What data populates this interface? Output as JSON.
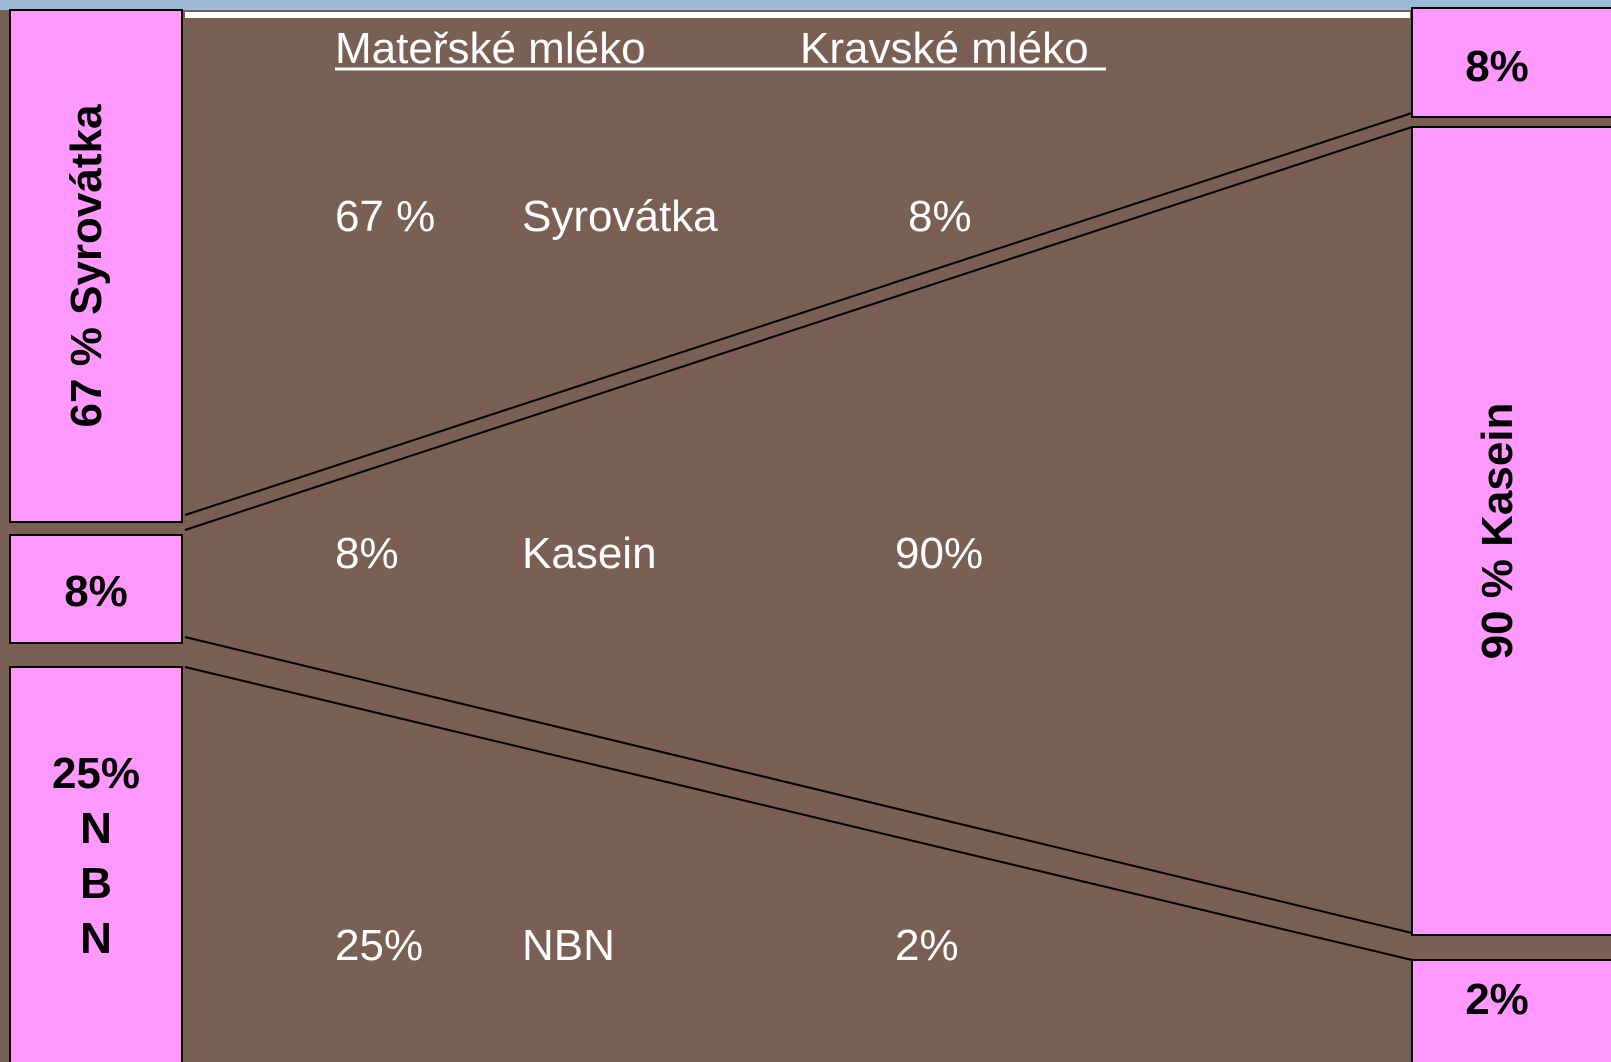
{
  "header": {
    "columns": [
      "Mateřské mléko",
      "Kravské mléko"
    ]
  },
  "rows": [
    [
      "67 %",
      "Syrovátka",
      "8%"
    ],
    [
      "8%",
      "Kasein",
      "90%"
    ],
    [
      "25%",
      "NBN",
      "2%"
    ]
  ],
  "left_boxes": [
    {
      "label": "67 % Syrovátka"
    },
    {
      "label": "8%"
    },
    {
      "lines": [
        "25%",
        "N",
        "B",
        "N"
      ]
    }
  ],
  "right_boxes": [
    {
      "label": "8%"
    },
    {
      "label": "90 % Kasein"
    },
    {
      "label": "2%"
    }
  ]
}
